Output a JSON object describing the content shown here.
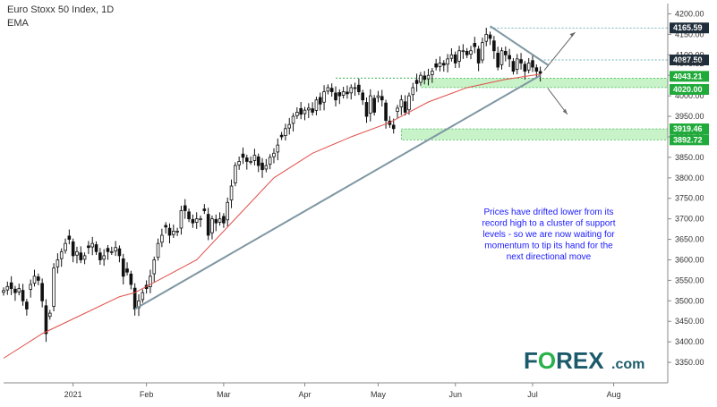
{
  "chart_data": {
    "type": "candlestick",
    "title": "Euro Stoxx 50 Index, 1D",
    "indicator_label": "EMA",
    "ylim": [
      3300,
      4225
    ],
    "y_ticks": [
      3350,
      3400,
      3450,
      3500,
      3550,
      3600,
      3650,
      3700,
      3750,
      3800,
      3850,
      3900,
      3950,
      4000,
      4050,
      4100,
      4150,
      4200
    ],
    "y_tick_labels": [
      "3350.00",
      "3400.00",
      "3450.00",
      "3500.00",
      "3550.00",
      "3600.00",
      "3650.00",
      "3700.00",
      "3750.00",
      "3800.00",
      "3850.00",
      "3900.00",
      "3950.00",
      "4000.00",
      "4050.00",
      "4100.00",
      "4150.00",
      "4200.00"
    ],
    "x_labels": [
      {
        "label": "2021",
        "day": 18
      },
      {
        "label": "Feb",
        "day": 37
      },
      {
        "label": "Mar",
        "day": 57
      },
      {
        "label": "Apr",
        "day": 78
      },
      {
        "label": "May",
        "day": 97
      },
      {
        "label": "Jun",
        "day": 117
      },
      {
        "label": "Jul",
        "day": 137
      },
      {
        "label": "Aug",
        "day": 158
      }
    ],
    "x_range": [
      0,
      172
    ],
    "closes": [
      [
        0,
        3525
      ],
      [
        1,
        3535
      ],
      [
        2,
        3530
      ],
      [
        3,
        3520
      ],
      [
        4,
        3530
      ],
      [
        5,
        3500
      ],
      [
        6,
        3480
      ],
      [
        7,
        3540
      ],
      [
        8,
        3560
      ],
      [
        9,
        3550
      ],
      [
        10,
        3500
      ],
      [
        11,
        3420
      ],
      [
        12,
        3470
      ],
      [
        13,
        3580
      ],
      [
        14,
        3600
      ],
      [
        15,
        3620
      ],
      [
        16,
        3640
      ],
      [
        17,
        3650
      ],
      [
        18,
        3610
      ],
      [
        19,
        3620
      ],
      [
        20,
        3600
      ],
      [
        21,
        3610
      ],
      [
        22,
        3630
      ],
      [
        23,
        3640
      ],
      [
        24,
        3620
      ],
      [
        25,
        3600
      ],
      [
        26,
        3610
      ],
      [
        27,
        3620
      ],
      [
        28,
        3620
      ],
      [
        29,
        3630
      ],
      [
        30,
        3610
      ],
      [
        31,
        3560
      ],
      [
        32,
        3570
      ],
      [
        33,
        3540
      ],
      [
        34,
        3480
      ],
      [
        35,
        3500
      ],
      [
        36,
        3520
      ],
      [
        37,
        3530
      ],
      [
        38,
        3560
      ],
      [
        39,
        3600
      ],
      [
        40,
        3640
      ],
      [
        41,
        3660
      ],
      [
        42,
        3680
      ],
      [
        43,
        3660
      ],
      [
        44,
        3670
      ],
      [
        45,
        3670
      ],
      [
        46,
        3720
      ],
      [
        47,
        3720
      ],
      [
        48,
        3700
      ],
      [
        49,
        3690
      ],
      [
        50,
        3700
      ],
      [
        51,
        3700
      ],
      [
        52,
        3720
      ],
      [
        53,
        3660
      ],
      [
        54,
        3700
      ],
      [
        55,
        3690
      ],
      [
        56,
        3700
      ],
      [
        57,
        3690
      ],
      [
        58,
        3740
      ],
      [
        59,
        3780
      ],
      [
        60,
        3830
      ],
      [
        61,
        3840
      ],
      [
        62,
        3850
      ],
      [
        63,
        3840
      ],
      [
        64,
        3840
      ],
      [
        65,
        3855
      ],
      [
        66,
        3830
      ],
      [
        67,
        3820
      ],
      [
        68,
        3830
      ],
      [
        69,
        3850
      ],
      [
        70,
        3860
      ],
      [
        71,
        3880
      ],
      [
        72,
        3900
      ],
      [
        73,
        3920
      ],
      [
        74,
        3930
      ],
      [
        75,
        3950
      ],
      [
        76,
        3960
      ],
      [
        77,
        3955
      ],
      [
        78,
        3965
      ],
      [
        79,
        3970
      ],
      [
        80,
        3960
      ],
      [
        81,
        3990
      ],
      [
        82,
        3980
      ],
      [
        83,
        4010
      ],
      [
        84,
        4020
      ],
      [
        85,
        4010
      ],
      [
        86,
        3990
      ],
      [
        87,
        4000
      ],
      [
        88,
        4010
      ],
      [
        89,
        4005
      ],
      [
        90,
        4020
      ],
      [
        91,
        4020
      ],
      [
        92,
        4010
      ],
      [
        93,
        3990
      ],
      [
        94,
        3950
      ],
      [
        95,
        4000
      ],
      [
        96,
        3960
      ],
      [
        97,
        4000
      ],
      [
        98,
        3990
      ],
      [
        99,
        3940
      ],
      [
        100,
        3930
      ],
      [
        101,
        3920
      ],
      [
        102,
        3970
      ],
      [
        103,
        3990
      ],
      [
        104,
        3960
      ],
      [
        105,
        4000
      ],
      [
        106,
        4020
      ],
      [
        107,
        4030
      ],
      [
        108,
        4050
      ],
      [
        109,
        4040
      ],
      [
        110,
        4050
      ],
      [
        111,
        4060
      ],
      [
        112,
        4070
      ],
      [
        113,
        4080
      ],
      [
        114,
        4075
      ],
      [
        115,
        4090
      ],
      [
        116,
        4100
      ],
      [
        117,
        4080
      ],
      [
        118,
        4110
      ],
      [
        119,
        4110
      ],
      [
        120,
        4100
      ],
      [
        121,
        4110
      ],
      [
        122,
        4120
      ],
      [
        123,
        4080
      ],
      [
        124,
        4130
      ],
      [
        125,
        4150
      ],
      [
        126,
        4140
      ],
      [
        127,
        4110
      ],
      [
        128,
        4070
      ],
      [
        129,
        4110
      ],
      [
        130,
        4100
      ],
      [
        131,
        4090
      ],
      [
        132,
        4060
      ],
      [
        133,
        4090
      ],
      [
        134,
        4080
      ],
      [
        135,
        4060
      ],
      [
        136,
        4080
      ],
      [
        137,
        4070
      ],
      [
        138,
        4060
      ],
      [
        139,
        4055
      ]
    ],
    "ema": [
      [
        0,
        3360
      ],
      [
        10,
        3420
      ],
      [
        20,
        3465
      ],
      [
        30,
        3510
      ],
      [
        34,
        3520
      ],
      [
        40,
        3550
      ],
      [
        50,
        3600
      ],
      [
        60,
        3700
      ],
      [
        70,
        3800
      ],
      [
        80,
        3860
      ],
      [
        90,
        3900
      ],
      [
        100,
        3935
      ],
      [
        110,
        3985
      ],
      [
        120,
        4020
      ],
      [
        130,
        4040
      ],
      [
        139,
        4053
      ]
    ],
    "support_zones": [
      {
        "low": 4020.0,
        "high": 4043.21
      },
      {
        "low": 3892.72,
        "high": 3919.46
      }
    ],
    "price_labels": [
      {
        "value": 4165.59,
        "label": "4165.59",
        "style": "dark"
      },
      {
        "value": 4087.5,
        "label": "4087.50",
        "style": "dark"
      },
      {
        "value": 4078.52,
        "label": "4078.52",
        "style": "plain"
      },
      {
        "value": 4043.21,
        "label": "4043.21",
        "style": "green"
      },
      {
        "value": 4020.0,
        "label": "4020.00",
        "style": "green"
      },
      {
        "value": 3919.46,
        "label": "3919.46",
        "style": "green"
      },
      {
        "value": 3892.72,
        "label": "3892.72",
        "style": "green"
      }
    ],
    "trendline": {
      "from": [
        34,
        3480
      ],
      "to": [
        139,
        4050
      ]
    },
    "resistance_line": {
      "from": [
        126,
        4170
      ],
      "to": [
        141,
        4075
      ]
    },
    "annotation": [
      "Prices have drifted lower from its",
      "record high to a cluster of support",
      "levels - so we are now waiting for",
      "momentum to tip its hand for the",
      "next directional move"
    ],
    "colors": {
      "up": "#ffffff",
      "down": "#111111",
      "ema": "#e0504a",
      "zone": "#9be89b",
      "badge_green": "#1faa3a",
      "badge_dark": "#1f2e3a",
      "trendline": "#7f97a3",
      "logo": "#1b5a6b",
      "logo_o": "#27b24a"
    }
  },
  "logo": {
    "main": "FOREX",
    "suffix": ".com"
  }
}
